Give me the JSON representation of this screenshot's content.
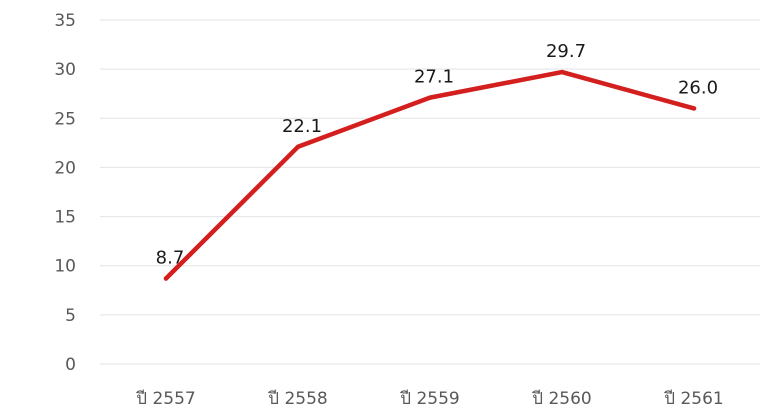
{
  "chart_data": {
    "type": "line",
    "categories": [
      "ปี 2557",
      "ปี 2558",
      "ปี 2559",
      "ปี 2560",
      "ปี 2561"
    ],
    "series": [
      {
        "values": [
          8.7,
          22.1,
          27.1,
          29.7,
          26.0
        ],
        "labels": [
          "8.7",
          "22.1",
          "27.1",
          "29.7",
          "26.0"
        ],
        "color": "#d41f1f"
      }
    ],
    "ylim": [
      0,
      35
    ],
    "yticks": [
      "0",
      "5",
      "10",
      "15",
      "20",
      "25",
      "30",
      "35"
    ],
    "grid": true,
    "legend": "none"
  }
}
